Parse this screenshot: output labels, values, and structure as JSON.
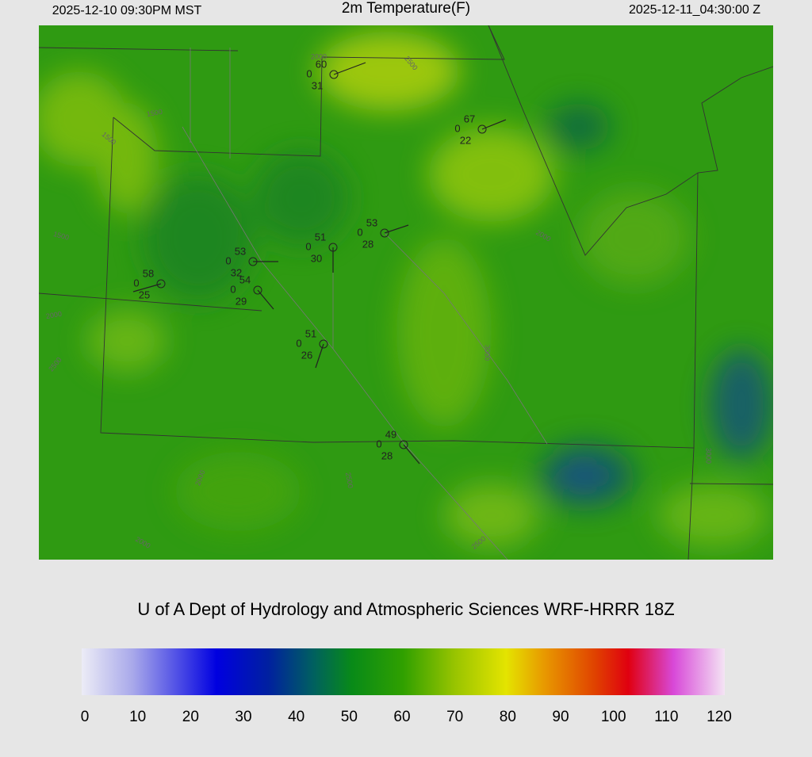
{
  "header": {
    "valid_local": "2025-12-10 09:30PM MST",
    "title": "2m Temperature(F)",
    "valid_utc": "2025-12-11_04:30:00 Z"
  },
  "stations": [
    {
      "temp": 60,
      "wind": 0,
      "dewpoint": 31
    },
    {
      "temp": 67,
      "wind": 0,
      "dewpoint": 22
    },
    {
      "temp": 53,
      "wind": 0,
      "dewpoint": 28
    },
    {
      "temp": 51,
      "wind": 0,
      "dewpoint": 30
    },
    {
      "temp": 53,
      "wind": 0,
      "dewpoint": 32
    },
    {
      "temp": 58,
      "wind": 0,
      "dewpoint": 25
    },
    {
      "temp": 54,
      "wind": 0,
      "dewpoint": 29
    },
    {
      "temp": 51,
      "wind": 0,
      "dewpoint": 26
    },
    {
      "temp": 49,
      "wind": 0,
      "dewpoint": 28
    }
  ],
  "contour_labels": [
    1500,
    1500,
    2000,
    2500,
    2000,
    1500,
    2000,
    2500,
    3000,
    2500,
    2000,
    2000,
    2500,
    3000
  ],
  "credit": "U of A Dept of Hydrology and Atmospheric Sciences WRF-HRRR 18Z",
  "colorbar": {
    "ticks": [
      0,
      10,
      20,
      30,
      40,
      50,
      60,
      70,
      80,
      90,
      100,
      110,
      120
    ]
  }
}
